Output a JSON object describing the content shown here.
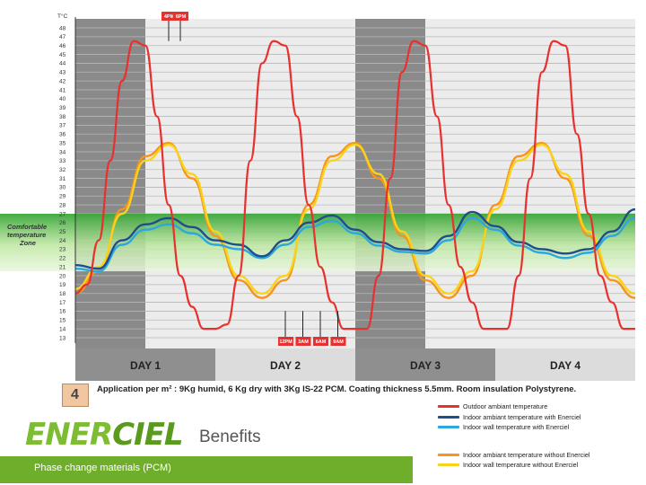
{
  "chart_data": {
    "type": "line",
    "ylabel": "T°C",
    "ylim": [
      13,
      48
    ],
    "yticks": [
      13,
      14,
      15,
      16,
      17,
      18,
      19,
      20,
      21,
      22,
      23,
      24,
      25,
      26,
      27,
      28,
      29,
      30,
      31,
      32,
      33,
      34,
      35,
      36,
      37,
      38,
      39,
      40,
      41,
      42,
      43,
      44,
      45,
      46,
      47,
      48
    ],
    "xlim": [
      0,
      96
    ],
    "days": [
      "DAY 1",
      "DAY 2",
      "DAY 3",
      "DAY 4"
    ],
    "comfort_zone": {
      "label": "Comfortable temperature Zone",
      "range": [
        20.5,
        27
      ]
    },
    "time_markers": [
      {
        "label": "4PM",
        "x": 16
      },
      {
        "label": "6PM",
        "x": 18
      },
      {
        "label": "12PM",
        "x": 36
      },
      {
        "label": "3AM",
        "x": 39
      },
      {
        "label": "6AM",
        "x": 42
      },
      {
        "label": "9AM",
        "x": 45
      }
    ],
    "series": [
      {
        "name": "Outdoor ambiant temperature",
        "color": "#e8312f",
        "x": [
          0,
          2,
          4,
          6,
          8,
          10,
          12,
          14,
          16,
          18,
          20,
          22,
          24,
          26,
          28,
          30,
          32,
          34,
          36,
          38,
          40,
          42,
          44,
          46,
          48,
          50,
          52,
          54,
          56,
          58,
          60,
          62,
          64,
          66,
          68,
          70,
          72,
          74,
          76,
          78,
          80,
          82,
          84,
          86,
          88,
          90,
          92,
          94,
          96
        ],
        "values": [
          18,
          19,
          24,
          33,
          42,
          46.5,
          46,
          38,
          28,
          20,
          16.5,
          14,
          14,
          14.5,
          20,
          33,
          44,
          46.5,
          46,
          38,
          28,
          21,
          17,
          14,
          14,
          14,
          20,
          31,
          43,
          46.5,
          46,
          38,
          28,
          21,
          17,
          14,
          14,
          14,
          20,
          31,
          43,
          46.5,
          46,
          36,
          27,
          20,
          17,
          14,
          14
        ]
      },
      {
        "name": "Indoor ambiant temperature with Enerciel",
        "color": "#1f4e8c",
        "x": [
          0,
          4,
          8,
          12,
          16,
          20,
          24,
          28,
          32,
          36,
          40,
          44,
          48,
          52,
          56,
          60,
          64,
          68,
          72,
          76,
          80,
          84,
          88,
          92,
          96
        ],
        "values": [
          21.2,
          20.8,
          24,
          25.8,
          26.5,
          25.5,
          24,
          23.5,
          22.2,
          24,
          26,
          26.8,
          25.2,
          23.8,
          23,
          22.8,
          24.5,
          27.2,
          25.6,
          23.8,
          23,
          22.5,
          23,
          25,
          27.5
        ]
      },
      {
        "name": "Indoor wall temperature with Enerciel",
        "color": "#2aa8df",
        "x": [
          0,
          4,
          8,
          12,
          16,
          20,
          24,
          28,
          32,
          36,
          40,
          44,
          48,
          52,
          56,
          60,
          64,
          68,
          72,
          76,
          80,
          84,
          88,
          92,
          96
        ],
        "values": [
          20.8,
          20.5,
          23.5,
          25.2,
          25.8,
          24.8,
          23.5,
          23,
          22,
          23.5,
          25.5,
          26.2,
          24.8,
          23.4,
          22.7,
          22.5,
          24,
          26.5,
          25.2,
          23.4,
          22.6,
          22,
          22.6,
          24.5,
          26.5
        ]
      },
      {
        "name": "Indoor ambiant temperature without Enerciel",
        "color": "#f7941d",
        "x": [
          0,
          4,
          8,
          12,
          16,
          20,
          24,
          28,
          32,
          36,
          40,
          44,
          48,
          52,
          56,
          60,
          64,
          68,
          72,
          76,
          80,
          84,
          88,
          92,
          96
        ],
        "values": [
          18,
          20.5,
          27.5,
          33.5,
          35,
          31,
          24.5,
          19.5,
          17.5,
          19.5,
          28,
          33.5,
          35,
          31,
          24.5,
          19.5,
          17.5,
          20,
          28,
          33.5,
          35,
          31,
          24.5,
          19.5,
          17.5
        ]
      },
      {
        "name": "Indoor wall temperature without Enerciel",
        "color": "#f9d31a",
        "x": [
          0,
          4,
          8,
          12,
          16,
          20,
          24,
          28,
          32,
          36,
          40,
          44,
          48,
          52,
          56,
          60,
          64,
          68,
          72,
          76,
          80,
          84,
          88,
          92,
          96
        ],
        "values": [
          18.5,
          21,
          27,
          33,
          34.8,
          31.5,
          25,
          20,
          18,
          20,
          27.5,
          33,
          34.8,
          31.5,
          25,
          20,
          18,
          20.5,
          27.5,
          33,
          34.8,
          31.5,
          25,
          20,
          18
        ]
      }
    ]
  },
  "badge_number": "4",
  "application_text": "Application per m² : 9Kg humid, 6 Kg dry with 3Kg IS-22 PCM. Coating thickness 5.5mm. Room insulation Polystyrene.",
  "branding": {
    "logo_part1": "ENER",
    "logo_part2": "CIEL",
    "subtitle": "Benefits",
    "banner": "Phase change materials (PCM)",
    "accent_color": "#6fae2a"
  }
}
